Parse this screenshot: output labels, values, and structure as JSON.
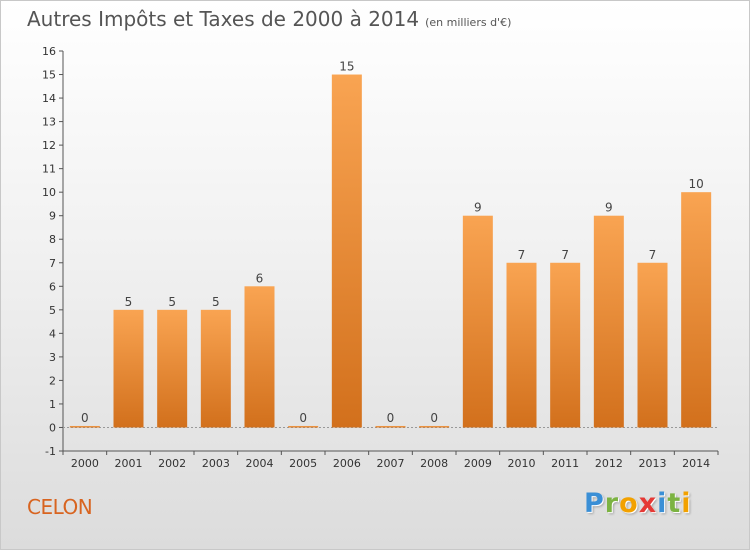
{
  "header": {
    "title": "Autres Impôts et Taxes de 2000 à 2014",
    "subtitle": "(en milliers d'€)"
  },
  "footer": {
    "commune": "CELON",
    "logo_letters": [
      {
        "ch": "P",
        "color": "#3a8fd6"
      },
      {
        "ch": "r",
        "color": "#7cb342"
      },
      {
        "ch": "o",
        "color": "#f2a100"
      },
      {
        "ch": "x",
        "color": "#e53935"
      },
      {
        "ch": "i",
        "color": "#3a8fd6"
      },
      {
        "ch": "t",
        "color": "#7cb342"
      },
      {
        "ch": "i",
        "color": "#f2a100"
      }
    ]
  },
  "colors": {
    "bar_top": "#f9a452",
    "bar_bottom": "#d2701c",
    "axis": "#555555",
    "grid_tick": "#888888"
  },
  "chart_data": {
    "type": "bar",
    "title": "Autres Impôts et Taxes de 2000 à 2014",
    "subtitle": "(en milliers d'€)",
    "categories": [
      "2000",
      "2001",
      "2002",
      "2003",
      "2004",
      "2005",
      "2006",
      "2007",
      "2008",
      "2009",
      "2010",
      "2011",
      "2012",
      "2013",
      "2014"
    ],
    "values": [
      0,
      5,
      5,
      5,
      6,
      0,
      15,
      0,
      0,
      9,
      7,
      7,
      9,
      7,
      10
    ],
    "data_labels": [
      "0",
      "5",
      "5",
      "5",
      "6",
      "0",
      "15",
      "0",
      "0",
      "9",
      "7",
      "7",
      "9",
      "7",
      "10"
    ],
    "y_ticks": [
      "-1",
      "0",
      "1",
      "2",
      "3",
      "4",
      "5",
      "6",
      "7",
      "8",
      "9",
      "10",
      "11",
      "12",
      "13",
      "14",
      "15",
      "16"
    ],
    "ylim": [
      -1,
      16
    ],
    "grid": false,
    "legend": "none"
  }
}
